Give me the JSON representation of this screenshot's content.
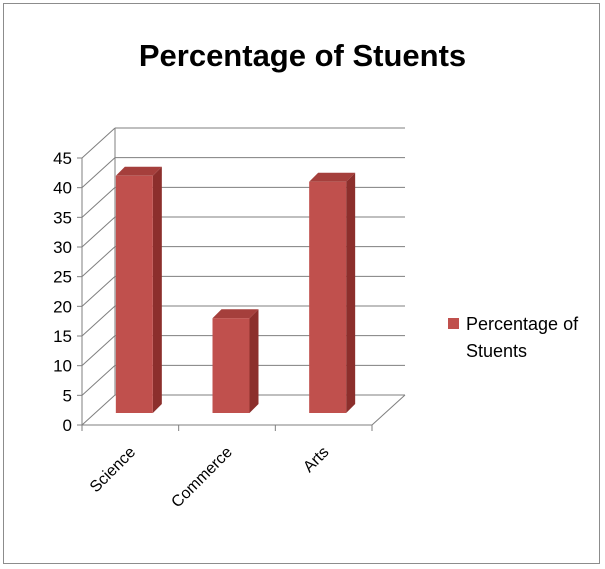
{
  "chart_data": {
    "type": "bar",
    "title": "Percentage of Stuents",
    "categories": [
      "Science",
      "Commerce",
      "Arts"
    ],
    "series": [
      {
        "name": "Percentage of Stuents",
        "values": [
          42,
          18,
          41
        ]
      }
    ],
    "ylim": [
      0,
      45
    ],
    "yticks": [
      "0",
      "5",
      "10",
      "15",
      "20",
      "25",
      "30",
      "35",
      "40",
      "45"
    ],
    "legend": {
      "position": "right",
      "label_lines": [
        "Percentage of",
        "Stuents"
      ]
    },
    "grid": true,
    "colors": {
      "bar_front": "#c0504d",
      "bar_side": "#8c2f2c",
      "bar_top": "#a53f3c",
      "grid": "#7f7f7f"
    }
  }
}
